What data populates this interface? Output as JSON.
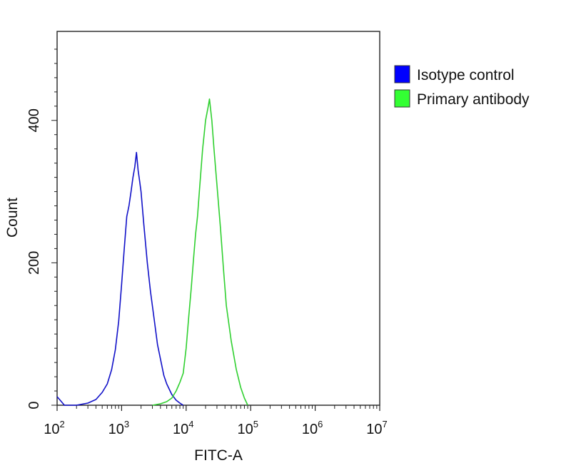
{
  "chart_data": {
    "type": "line",
    "title": "",
    "xlabel": "FITC-A",
    "ylabel": "Count",
    "x_scale": "log",
    "xlim": [
      100,
      10000000
    ],
    "ylim": [
      0,
      525
    ],
    "x_ticks": [
      {
        "value": 100,
        "base": "10",
        "exp": "2"
      },
      {
        "value": 1000,
        "base": "10",
        "exp": "3"
      },
      {
        "value": 10000,
        "base": "10",
        "exp": "4"
      },
      {
        "value": 100000,
        "base": "10",
        "exp": "5"
      },
      {
        "value": 1000000,
        "base": "10",
        "exp": "6"
      },
      {
        "value": 10000000,
        "base": "10",
        "exp": "7"
      }
    ],
    "y_ticks": [
      {
        "value": 0,
        "label": "0"
      },
      {
        "value": 200,
        "label": "200"
      },
      {
        "value": 400,
        "label": "400"
      }
    ],
    "grid": false,
    "legend_position": "right",
    "series": [
      {
        "name": "Isotype control",
        "color": "#1010c8",
        "swatch": "#0000ff",
        "x": [
          100,
          130,
          200,
          300,
          400,
          500,
          600,
          700,
          800,
          900,
          1000,
          1100,
          1200,
          1300,
          1400,
          1500,
          1600,
          1700,
          1800,
          1900,
          2000,
          2200,
          2500,
          2800,
          3200,
          3600,
          4000,
          4500,
          5000,
          6000,
          7000,
          8000,
          9000
        ],
        "y": [
          12,
          0,
          0,
          3,
          8,
          18,
          30,
          50,
          78,
          118,
          170,
          220,
          265,
          280,
          300,
          320,
          335,
          355,
          330,
          315,
          300,
          255,
          200,
          160,
          120,
          85,
          65,
          42,
          30,
          15,
          7,
          3,
          0
        ]
      },
      {
        "name": "Primary antibody",
        "color": "#30d030",
        "swatch": "#33ff33",
        "x": [
          3000,
          4000,
          5000,
          6000,
          7000,
          8000,
          9000,
          10000,
          11000,
          12000,
          13000,
          14000,
          15000,
          16000,
          17000,
          18000,
          19000,
          20000,
          21000,
          22000,
          23000,
          25000,
          27000,
          30000,
          34000,
          38000,
          42000,
          50000,
          60000,
          70000,
          80000,
          90000
        ],
        "y": [
          0,
          2,
          5,
          10,
          20,
          32,
          45,
          80,
          125,
          165,
          205,
          240,
          265,
          300,
          330,
          360,
          380,
          400,
          410,
          420,
          430,
          400,
          360,
          310,
          250,
          190,
          140,
          90,
          50,
          25,
          10,
          0
        ]
      }
    ]
  }
}
